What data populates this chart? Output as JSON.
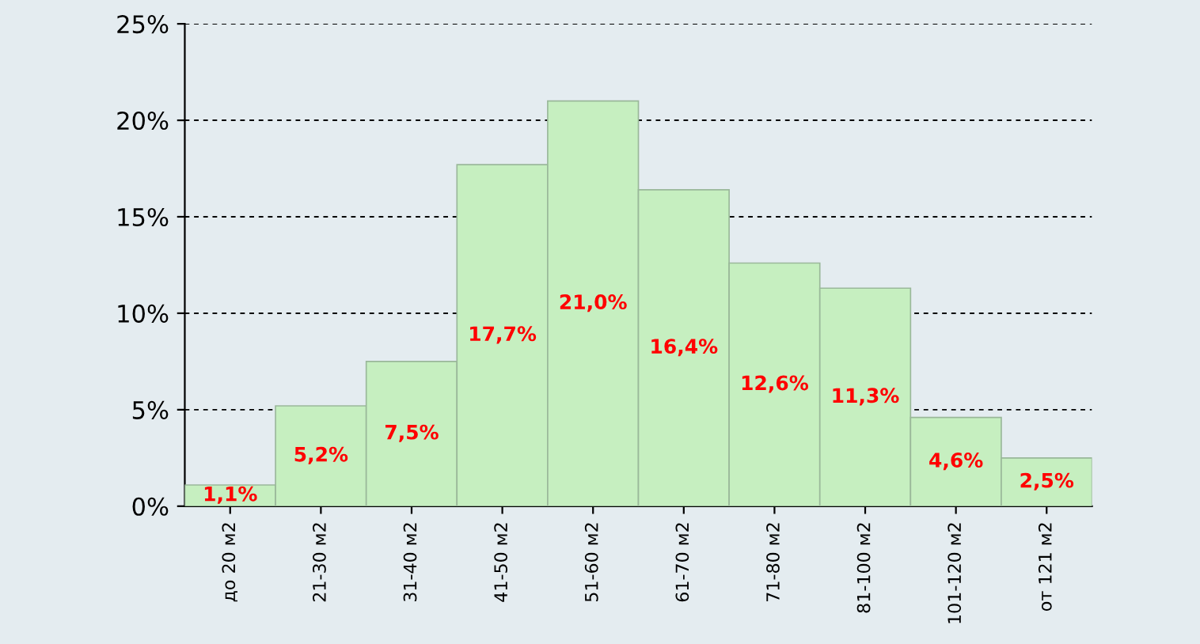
{
  "chart_data": {
    "type": "bar",
    "categories": [
      "до 20 м2",
      "21-30 м2",
      "31-40 м2",
      "41-50 м2",
      "51-60 м2",
      "61-70 м2",
      "71-80 м2",
      "81-100 м2",
      "101-120 м2",
      "от 121 м2"
    ],
    "values": [
      1.1,
      5.2,
      7.5,
      17.7,
      21.0,
      16.4,
      12.6,
      11.3,
      4.6,
      2.5
    ],
    "value_labels": [
      "1,1%",
      "5,2%",
      "7,5%",
      "17,7%",
      "21,0%",
      "16,4%",
      "12,6%",
      "11,3%",
      "4,6%",
      "2,5%"
    ],
    "color": "#c6efc0",
    "ylim": [
      0,
      25
    ],
    "yticks": [
      {
        "value": 0,
        "label": "0%"
      },
      {
        "value": 5,
        "label": "5%"
      },
      {
        "value": 10,
        "label": "10%"
      },
      {
        "value": 15,
        "label": "15%"
      },
      {
        "value": 20,
        "label": "20%"
      },
      {
        "value": 25,
        "label": "25%"
      }
    ],
    "grid": "y"
  }
}
